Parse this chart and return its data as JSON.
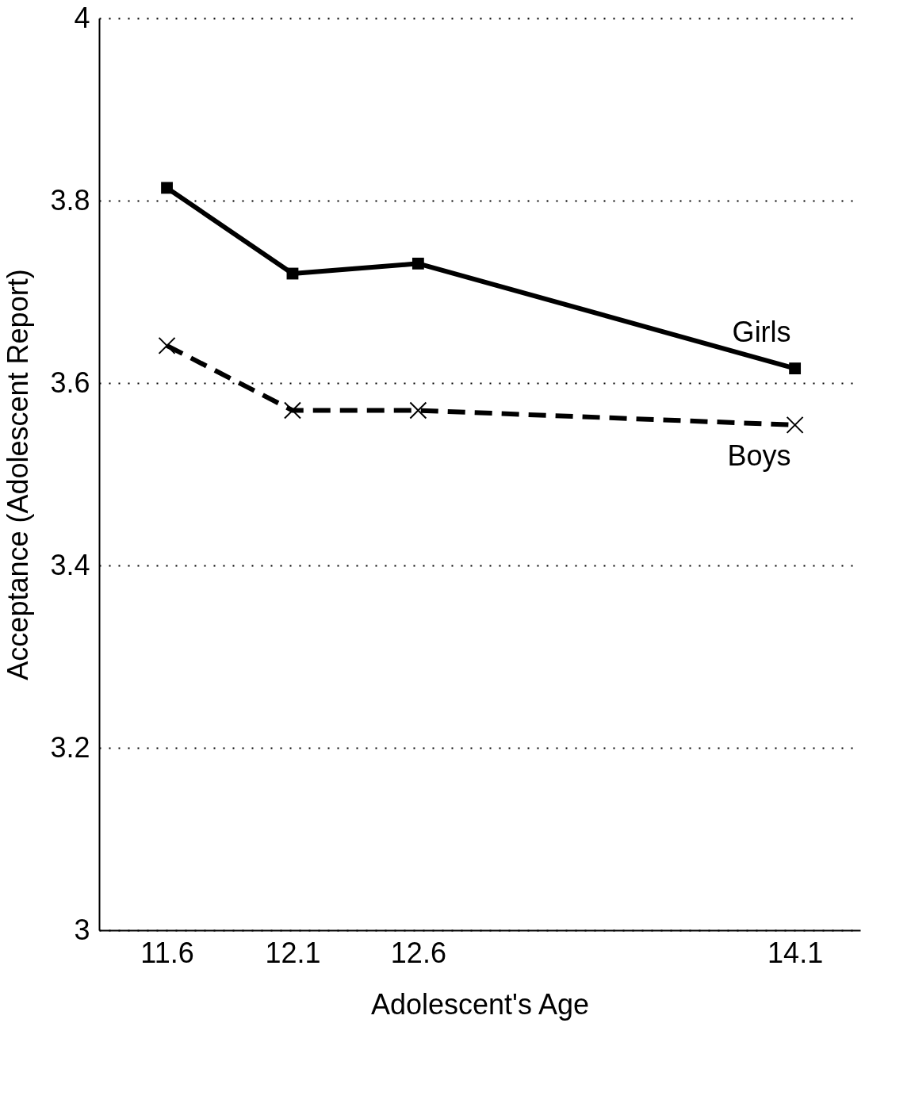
{
  "chart_data": {
    "type": "line",
    "xlabel": "Adolescent's Age",
    "ylabel": "Acceptance (Adolescent Report)",
    "x": [
      11.6,
      12.1,
      12.6,
      14.1
    ],
    "series": [
      {
        "name": "Girls",
        "color": "#000000",
        "values": [
          3.814,
          3.72,
          3.731,
          3.616
        ],
        "marker": "square",
        "line_style": "solid"
      },
      {
        "name": "Boys",
        "color": "#000000",
        "values": [
          3.641,
          3.57,
          3.57,
          3.554
        ],
        "marker": "cross",
        "line_style": "dashed"
      }
    ],
    "xlim": [
      11.33,
      14.36
    ],
    "xticks": [
      11.6,
      12.1,
      12.6,
      14.1
    ],
    "ylim": [
      3,
      4
    ],
    "yticks": [
      3,
      3.2,
      3.4,
      3.6,
      3.8,
      4
    ],
    "grid": "y",
    "legend": false
  }
}
